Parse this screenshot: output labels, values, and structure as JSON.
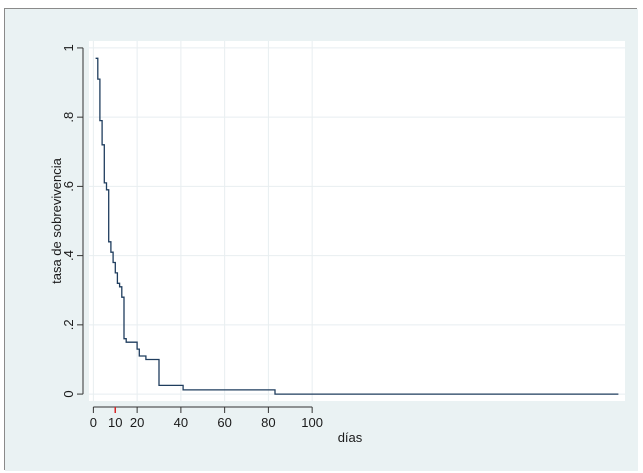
{
  "chart_data": {
    "type": "line",
    "step": true,
    "xlabel": "días",
    "ylabel": "tasa de sobrevivencia",
    "xlim": [
      -2,
      243
    ],
    "ylim": [
      -0.02,
      1.02
    ],
    "x_ticks": [
      0,
      10,
      20,
      40,
      60,
      80,
      100
    ],
    "x_tick_labels": [
      "0",
      "10",
      "20",
      "40",
      "60",
      "80",
      "100"
    ],
    "x_grid": [
      0,
      20,
      40,
      60,
      80,
      100
    ],
    "y_ticks": [
      0,
      0.2,
      0.4,
      0.6,
      0.8,
      1
    ],
    "y_tick_labels": [
      "0",
      ".2",
      ".4",
      ".6",
      ".8",
      "1"
    ],
    "marker_x": 10,
    "colors": {
      "line": "#1f3d5e",
      "plot_background": "#ffffff",
      "outer_background": "#eaf2f3",
      "grid": "#e8eef0",
      "marker": "#d62728"
    },
    "series": [
      {
        "x": [
          1,
          2,
          3,
          4,
          5,
          6,
          7,
          8,
          9,
          10,
          11,
          12,
          13,
          14,
          15,
          16,
          20,
          21,
          22,
          24,
          29,
          30,
          40,
          41,
          80,
          83,
          240
        ],
        "y": [
          0.97,
          0.91,
          0.79,
          0.72,
          0.61,
          0.59,
          0.44,
          0.41,
          0.38,
          0.35,
          0.32,
          0.31,
          0.28,
          0.16,
          0.15,
          0.15,
          0.13,
          0.11,
          0.11,
          0.1,
          0.1,
          0.025,
          0.025,
          0.012,
          0.012,
          0.0,
          0.0
        ]
      }
    ]
  }
}
